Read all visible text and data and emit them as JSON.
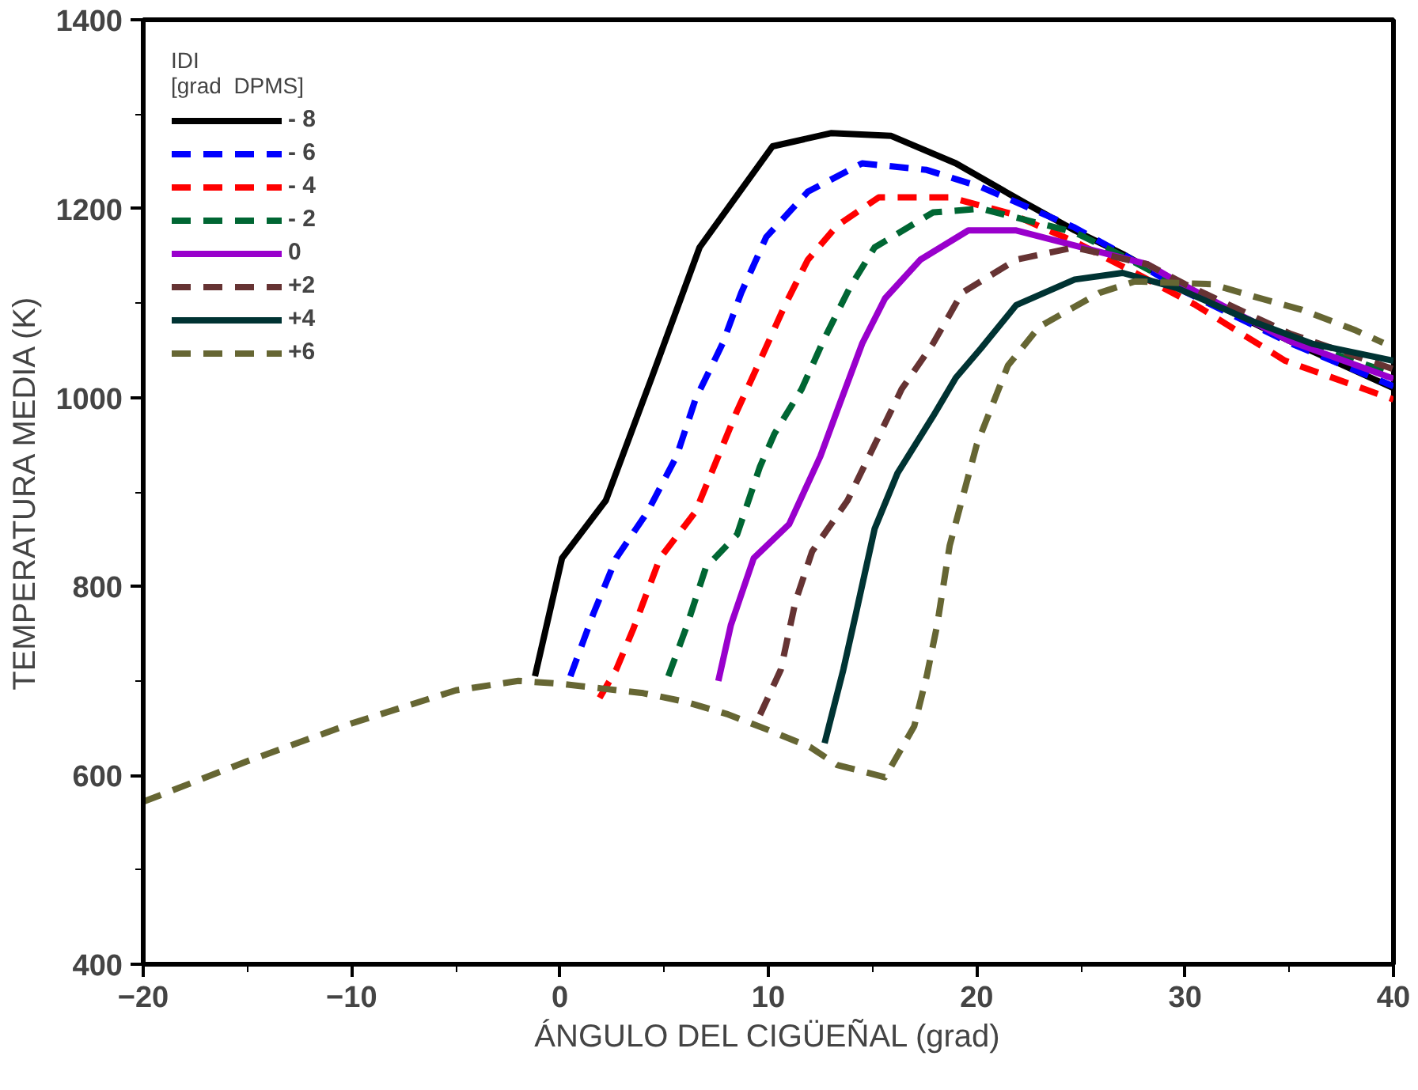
{
  "chart_data": {
    "type": "line",
    "xlabel": "ÁNGULO DEL CIGÜEÑAL (grad)",
    "ylabel": "TEMPERATURA MEDIA (K)",
    "legend_title": "IDI\n[grad  DPMS]",
    "legend": "top left",
    "grid": false,
    "marker": "none",
    "xlim": [
      -20,
      40
    ],
    "xticks": [
      -20,
      -10,
      0,
      10,
      20,
      30,
      40
    ],
    "ylim": [
      400,
      1400
    ],
    "yticks": [
      400,
      600,
      800,
      1000,
      1200,
      1400
    ],
    "series": [
      {
        "name": "- 8",
        "color": "#000000",
        "line_style": "solid",
        "x": [
          -1.2,
          0.1,
          2.2,
          4.4,
          6.7,
          10.2,
          13,
          15.9,
          19,
          22.4,
          24.7,
          27,
          30,
          35,
          40
        ],
        "values": [
          705,
          830,
          891,
          1021,
          1159,
          1266,
          1280,
          1277,
          1248,
          1205,
          1177,
          1152,
          1115,
          1060,
          1010
        ]
      },
      {
        "name": "- 6",
        "color": "#0000ff",
        "line_style": "dashed",
        "x": [
          0.5,
          1.6,
          2.7,
          4.2,
          5.6,
          6.5,
          7.8,
          8.7,
          9.9,
          11.9,
          14.5,
          17.6,
          20.2,
          24.7,
          27,
          30,
          35,
          40
        ],
        "values": [
          705,
          771,
          830,
          879,
          938,
          998,
          1057,
          1111,
          1170,
          1218,
          1248,
          1241,
          1223,
          1180,
          1152,
          1112,
          1058,
          1012
        ]
      },
      {
        "name": "- 4",
        "color": "#ff0000",
        "line_style": "dashed",
        "x": [
          1.9,
          2.7,
          3.5,
          4.8,
          6.5,
          7.6,
          8.5,
          9.6,
          10.8,
          11.9,
          13.3,
          15.3,
          18.7,
          21.6,
          24.7,
          27.6,
          30.5,
          34.8,
          40
        ],
        "values": [
          682,
          712,
          754,
          830,
          879,
          938,
          986,
          1039,
          1098,
          1146,
          1182,
          1212,
          1212,
          1195,
          1165,
          1132,
          1098,
          1039,
          998
        ]
      },
      {
        "name": "- 2",
        "color": "#006633",
        "line_style": "dashed",
        "x": [
          5.2,
          6.1,
          7,
          8.5,
          9.6,
          10.3,
          11.6,
          12.7,
          13.9,
          15.1,
          17.9,
          20.2,
          24.7,
          27,
          30,
          35,
          40
        ],
        "values": [
          705,
          759,
          820,
          855,
          927,
          962,
          1009,
          1063,
          1116,
          1159,
          1196,
          1200,
          1175,
          1150,
          1115,
          1062,
          1025
        ]
      },
      {
        "name": "0",
        "color": "#9900cc",
        "line_style": "solid",
        "x": [
          7.6,
          8.2,
          9.3,
          11,
          12.5,
          13.3,
          14.5,
          15.6,
          17.3,
          19.6,
          21.9,
          24.7,
          28.2,
          29.6,
          35,
          40
        ],
        "values": [
          700,
          759,
          830,
          866,
          938,
          986,
          1057,
          1105,
          1146,
          1177,
          1177,
          1161,
          1141,
          1123,
          1060,
          1020
        ]
      },
      {
        "name": "+2",
        "color": "#663333",
        "line_style": "dashed",
        "x": [
          9.6,
          10.6,
          11.3,
          12.1,
          13.8,
          15.1,
          16.4,
          17.9,
          19.3,
          21.9,
          24.7,
          28.2,
          30,
          35,
          40
        ],
        "values": [
          664,
          712,
          784,
          837,
          891,
          950,
          1009,
          1057,
          1111,
          1146,
          1159,
          1141,
          1120,
          1068,
          1030
        ]
      },
      {
        "name": "+4",
        "color": "#003333",
        "line_style": "solid",
        "x": [
          12.7,
          13.6,
          14.2,
          15.1,
          16.2,
          17.9,
          19,
          20.2,
          21.9,
          24.7,
          27,
          29.6,
          33.3,
          36.1,
          40
        ],
        "values": [
          634,
          712,
          771,
          861,
          920,
          980,
          1021,
          1052,
          1098,
          1125,
          1132,
          1116,
          1080,
          1057,
          1039
        ]
      },
      {
        "name": "+6",
        "color": "#666633",
        "line_style": "dashed",
        "x": [
          -20,
          -15,
          -10,
          -5,
          -2,
          0,
          2,
          4,
          6,
          8,
          10,
          12,
          13.3,
          15.6,
          17,
          17.6,
          18.1,
          18.7,
          20,
          21.5,
          23,
          25.9,
          27.6,
          31.3,
          33.3,
          35.6,
          38.2,
          39.5
        ],
        "values": [
          572,
          615,
          655,
          690,
          700,
          697,
          692,
          687,
          678,
          665,
          648,
          630,
          611,
          598,
          652,
          705,
          759,
          843,
          950,
          1034,
          1075,
          1111,
          1123,
          1120,
          1107,
          1093,
          1071,
          1058
        ]
      }
    ]
  }
}
